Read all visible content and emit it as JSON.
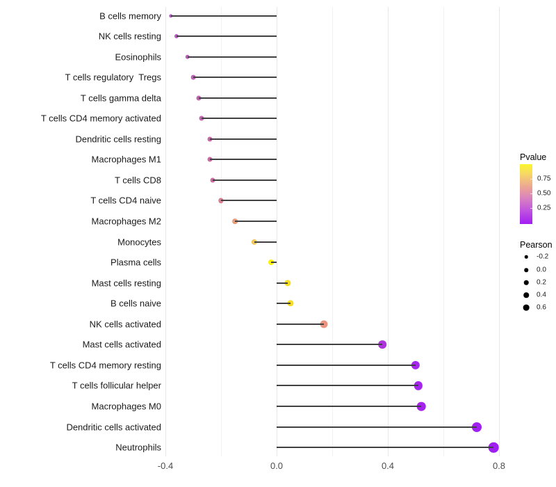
{
  "chart_data": {
    "type": "scatter",
    "subtype": "lollipop",
    "title": "",
    "xlabel": "",
    "ylabel": "",
    "xlim": [
      -0.45,
      0.86
    ],
    "x_ticks": [
      -0.4,
      0.0,
      0.4,
      0.8
    ],
    "x_tick_labels": [
      "-0.4",
      "0.0",
      "0.4",
      "0.8"
    ],
    "x_minor_gridlines": [
      -0.2,
      0.2,
      0.6
    ],
    "baseline_x": 0.0,
    "grid": "vertical-only",
    "legend_position": "right",
    "rows": [
      {
        "label": "B cells memory",
        "pearson": -0.38,
        "color": "#B55BC5",
        "size": 5.3
      },
      {
        "label": "NK cells resting",
        "pearson": -0.36,
        "color": "#B85CC1",
        "size": 6.0
      },
      {
        "label": "Eosinophils",
        "pearson": -0.32,
        "color": "#BC5FBB",
        "size": 6.4
      },
      {
        "label": "T cells regulatory  Tregs",
        "pearson": -0.3,
        "color": "#BF61B6",
        "size": 6.7
      },
      {
        "label": "T cells gamma delta",
        "pearson": -0.28,
        "color": "#C263B2",
        "size": 7.0
      },
      {
        "label": "T cells CD4 memory activated",
        "pearson": -0.27,
        "color": "#C465AF",
        "size": 7.0
      },
      {
        "label": "Dendritic cells resting",
        "pearson": -0.24,
        "color": "#C968A9",
        "size": 7.0
      },
      {
        "label": "Macrophages M1",
        "pearson": -0.24,
        "color": "#CB69A6",
        "size": 7.0
      },
      {
        "label": "T cells CD8",
        "pearson": -0.23,
        "color": "#CD6BA2",
        "size": 7.0
      },
      {
        "label": "T cells CD4 naive",
        "pearson": -0.2,
        "color": "#D97F90",
        "size": 7.3
      },
      {
        "label": "Macrophages M2",
        "pearson": -0.15,
        "color": "#E89C7B",
        "size": 7.7
      },
      {
        "label": "Monocytes",
        "pearson": -0.08,
        "color": "#EFC85C",
        "size": 8.3
      },
      {
        "label": "Plasma cells",
        "pearson": -0.02,
        "color": "#FBF303",
        "size": 8.0
      },
      {
        "label": "Mast cells resting",
        "pearson": 0.04,
        "color": "#F5DC25",
        "size": 9.3
      },
      {
        "label": "B cells naive",
        "pearson": 0.05,
        "color": "#F5DC25",
        "size": 9.3
      },
      {
        "label": "NK cells activated",
        "pearson": 0.17,
        "color": "#E99480",
        "size": 11.0
      },
      {
        "label": "Mast cells activated",
        "pearson": 0.38,
        "color": "#AC36DC",
        "size": 11.6
      },
      {
        "label": "T cells CD4 memory resting",
        "pearson": 0.5,
        "color": "#A527EB",
        "size": 12.3
      },
      {
        "label": "T cells follicular helper",
        "pearson": 0.51,
        "color": "#A425EC",
        "size": 12.3
      },
      {
        "label": "Macrophages M0",
        "pearson": 0.52,
        "color": "#A424ED",
        "size": 12.6
      },
      {
        "label": "Dendritic cells activated",
        "pearson": 0.72,
        "color": "#A021F0",
        "size": 14.0
      },
      {
        "label": "Neutrophils",
        "pearson": 0.78,
        "color": "#9F1FF1",
        "size": 14.6
      }
    ]
  },
  "legend": {
    "pvalue": {
      "title": "Pvalue",
      "ticks": [
        {
          "label": "0.75",
          "y": 257
        },
        {
          "label": "0.50",
          "y": 278
        },
        {
          "label": "0.25",
          "y": 299
        }
      ],
      "gradient_top_color": "#FBF62B",
      "gradient_bottom_color": "#A21EF2"
    },
    "pearson": {
      "title": "Pearson",
      "keys": [
        {
          "label": "-0.2",
          "size": 4.5,
          "y": 369
        },
        {
          "label": "0.0",
          "size": 5.5,
          "y": 388
        },
        {
          "label": "0.2",
          "size": 6.5,
          "y": 406
        },
        {
          "label": "0.4",
          "size": 7.5,
          "y": 424
        },
        {
          "label": "0.6",
          "size": 8.7,
          "y": 442
        }
      ],
      "key_color": "#000000"
    }
  },
  "colors": {
    "background": "#FFFFFF",
    "segment": "#404040",
    "major_gridline": "#E7E7E7",
    "minor_gridline": "#F2F2F2",
    "axis_text": "#4D4D4D",
    "label_text": "#1A1A1A"
  }
}
